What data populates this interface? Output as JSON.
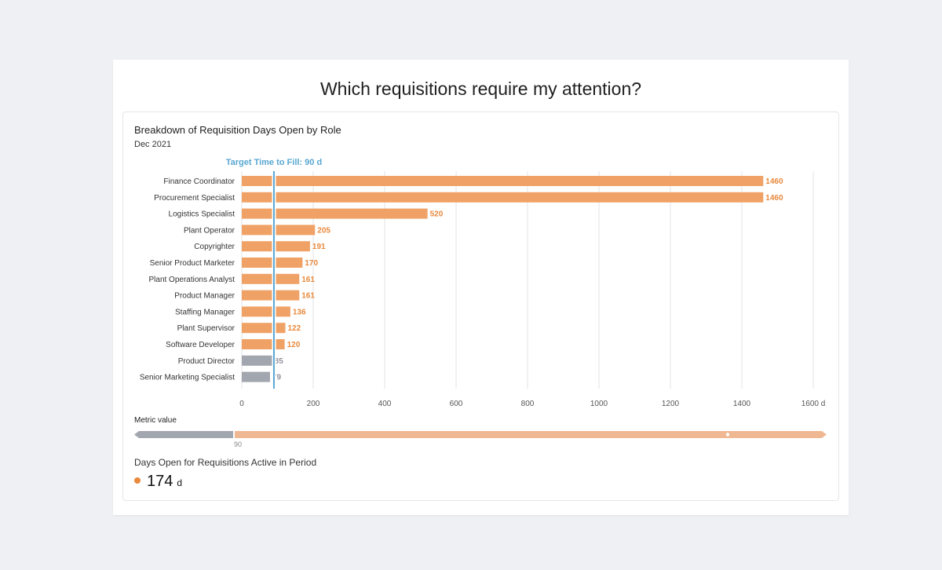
{
  "page": {
    "title": "Which requisitions require my attention?"
  },
  "chart_data": {
    "type": "bar",
    "orientation": "horizontal",
    "title": "Breakdown of Requisition Days Open by Role",
    "subtitle": "Dec 2021",
    "categories": [
      "Finance Coordinator",
      "Procurement Specialist",
      "Logistics Specialist",
      "Plant Operator",
      "Copyrighter",
      "Senior Product Marketer",
      "Plant Operations Analyst",
      "Product Manager",
      "Staffing Manager",
      "Plant Supervisor",
      "Software Developer",
      "Product Director",
      "Senior Marketing Specialist"
    ],
    "values": [
      1460,
      1460,
      520,
      205,
      191,
      170,
      161,
      161,
      136,
      122,
      120,
      85,
      79
    ],
    "value_labels": [
      "1460",
      "1460",
      "520",
      "205",
      "191",
      "170",
      "161",
      "161",
      "136",
      "122",
      "120",
      "85",
      "79"
    ],
    "xlim": [
      0,
      1600
    ],
    "xticks": [
      "0",
      "200",
      "400",
      "600",
      "800",
      "1000",
      "1200",
      "1400",
      "1600 d"
    ],
    "xtick_values": [
      0,
      200,
      400,
      600,
      800,
      1000,
      1200,
      1400,
      1600
    ],
    "grid": "vertical",
    "target": {
      "value": 90,
      "label": "Target Time to Fill: 90 d"
    },
    "colors": {
      "above_target": "#f0a266",
      "below_target": "#a2a6ae",
      "above_label": "#e8893d",
      "below_label": "#8f939b",
      "target_line": "#58a7d1",
      "grid": "#e1e3e7"
    }
  },
  "metric_scale": {
    "label": "Metric value",
    "threshold_value": 90,
    "threshold_label": "90",
    "range": [
      0,
      1600
    ],
    "marker_value": 1370,
    "colors": {
      "below": "#a2a6ae",
      "above": "#efb892"
    }
  },
  "kpi": {
    "label": "Days Open for Requisitions Active in Period",
    "value": "174",
    "unit": "d",
    "dot_color": "#e8893d"
  }
}
